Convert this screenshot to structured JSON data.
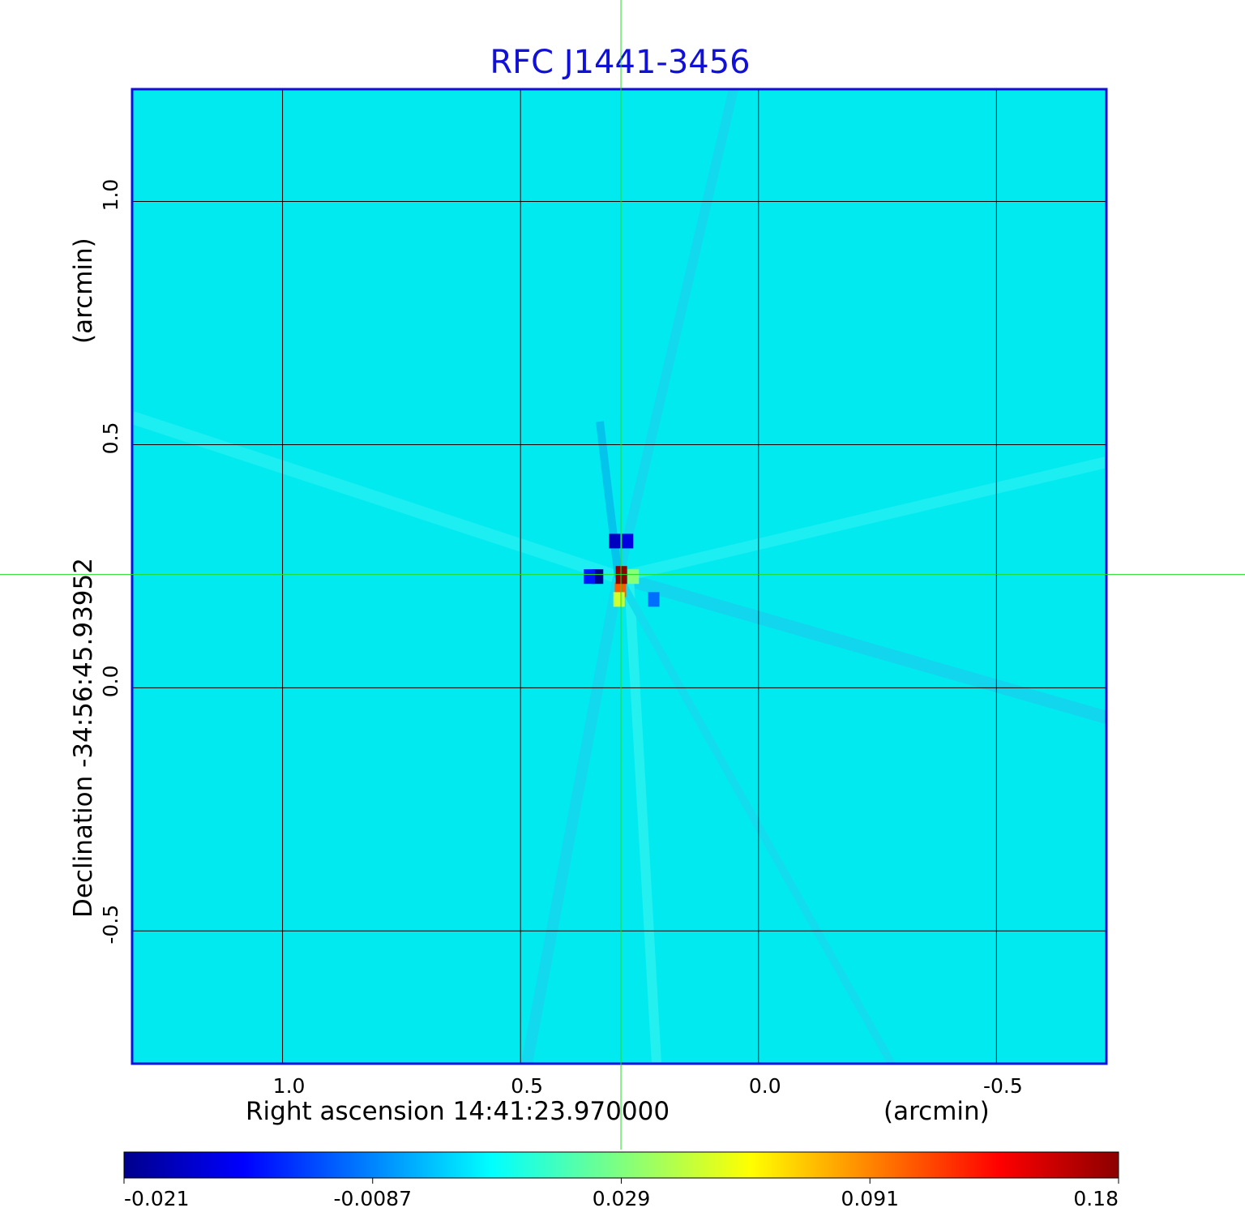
{
  "chart_data": {
    "type": "heatmap",
    "title": "RFC J1441-3456",
    "xlabel": "Right ascension  14:41:23.970000",
    "xunit": "(arcmin)",
    "ylabel": "Declination  -34:56:45.93952",
    "yunit": "(arcmin)",
    "x_ticks": [
      {
        "value": 1.0,
        "label": "1.0"
      },
      {
        "value": 0.5,
        "label": "0.5"
      },
      {
        "value": 0.0,
        "label": "0.0"
      },
      {
        "value": -0.5,
        "label": "-0.5"
      }
    ],
    "y_ticks": [
      {
        "value": 1.0,
        "label": "1.0"
      },
      {
        "value": 0.5,
        "label": "0.5"
      },
      {
        "value": 0.0,
        "label": "0.0"
      },
      {
        "value": -0.5,
        "label": "-0.5"
      }
    ],
    "xlim": [
      1.316,
      -0.731
    ],
    "ylim": [
      -0.773,
      1.231
    ],
    "grid": true,
    "crosshair": {
      "x": 0.289,
      "y": 0.233,
      "color": "#22dd22"
    },
    "colorbar": {
      "ticks": [
        {
          "value": -0.021,
          "label": "-0.021"
        },
        {
          "value": -0.0087,
          "label": "-0.0087"
        },
        {
          "value": 0.029,
          "label": "0.029"
        },
        {
          "value": 0.091,
          "label": "0.091"
        },
        {
          "value": 0.18,
          "label": "0.18"
        }
      ],
      "colormap": "jet",
      "colors": [
        "#00008c",
        "#0000ff",
        "#00ffff",
        "#ffff00",
        "#ff0000",
        "#8c0000"
      ]
    },
    "background_value": 0.0,
    "source_peak": {
      "x": 0.288,
      "y": 0.232,
      "value": 0.18
    },
    "features": [
      {
        "x": 0.338,
        "y": 0.232,
        "value": -0.021
      },
      {
        "x": 0.302,
        "y": 0.305,
        "value": -0.018
      },
      {
        "x": 0.275,
        "y": 0.305,
        "value": -0.016
      },
      {
        "x": 0.355,
        "y": 0.232,
        "value": -0.013
      },
      {
        "x": 0.29,
        "y": 0.205,
        "value": 0.12
      },
      {
        "x": 0.293,
        "y": 0.185,
        "value": 0.06
      },
      {
        "x": 0.263,
        "y": 0.232,
        "value": 0.04
      },
      {
        "x": 0.22,
        "y": 0.185,
        "value": -0.008
      }
    ],
    "colors": {
      "frame": "#1010d8",
      "grid": "#000000",
      "title": "#1010d8"
    }
  }
}
